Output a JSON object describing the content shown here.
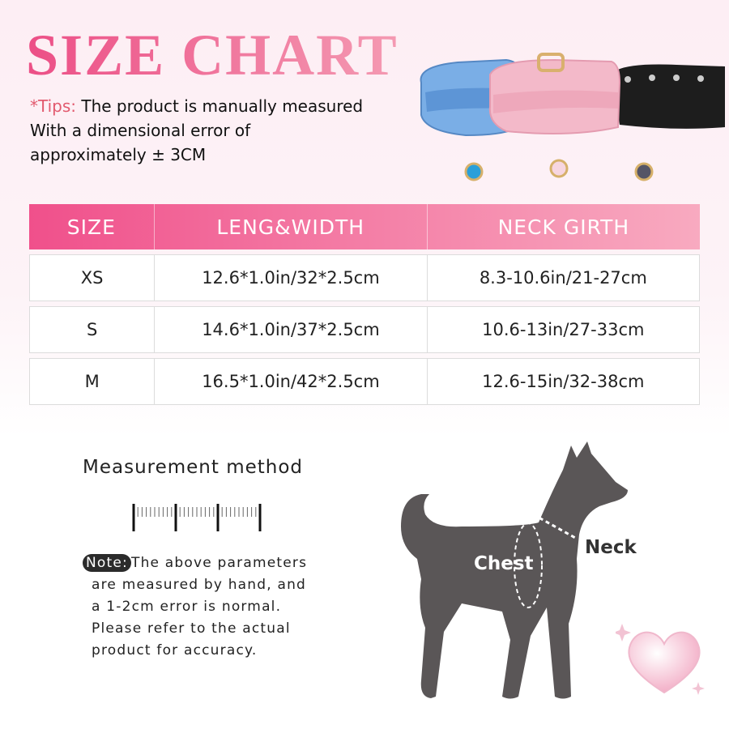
{
  "title": "SIZE CHART",
  "tips": {
    "label": "*Tips:",
    "line1": " The product is manually measured",
    "line2": "With a dimensional error of",
    "line3": "approximately ± 3CM"
  },
  "table": {
    "headers": [
      "SIZE",
      "LENG&WIDTH",
      "NECK GIRTH"
    ],
    "rows": [
      [
        "XS",
        "12.6*1.0in/32*2.5cm",
        "8.3-10.6in/21-27cm"
      ],
      [
        "S",
        "14.6*1.0in/37*2.5cm",
        "10.6-13in/27-33cm"
      ],
      [
        "M",
        "16.5*1.0in/42*2.5cm",
        "12.6-15in/32-38cm"
      ]
    ],
    "header_color_start": "#f0508b",
    "header_color_end": "#f8aac0"
  },
  "measurement": {
    "title": "Measurement method",
    "note_label": "Note:",
    "note_lines": [
      "The above parameters",
      "are measured by hand, and",
      "a 1-2cm error is normal.",
      "Please refer to the actual",
      "product for accuracy."
    ]
  },
  "dog": {
    "chest_label": "Chest",
    "neck_label": "Neck",
    "color": "#5a5657"
  },
  "collar_colors": [
    "#6fa6e0",
    "#f3b7c8",
    "#1c1c1c"
  ]
}
